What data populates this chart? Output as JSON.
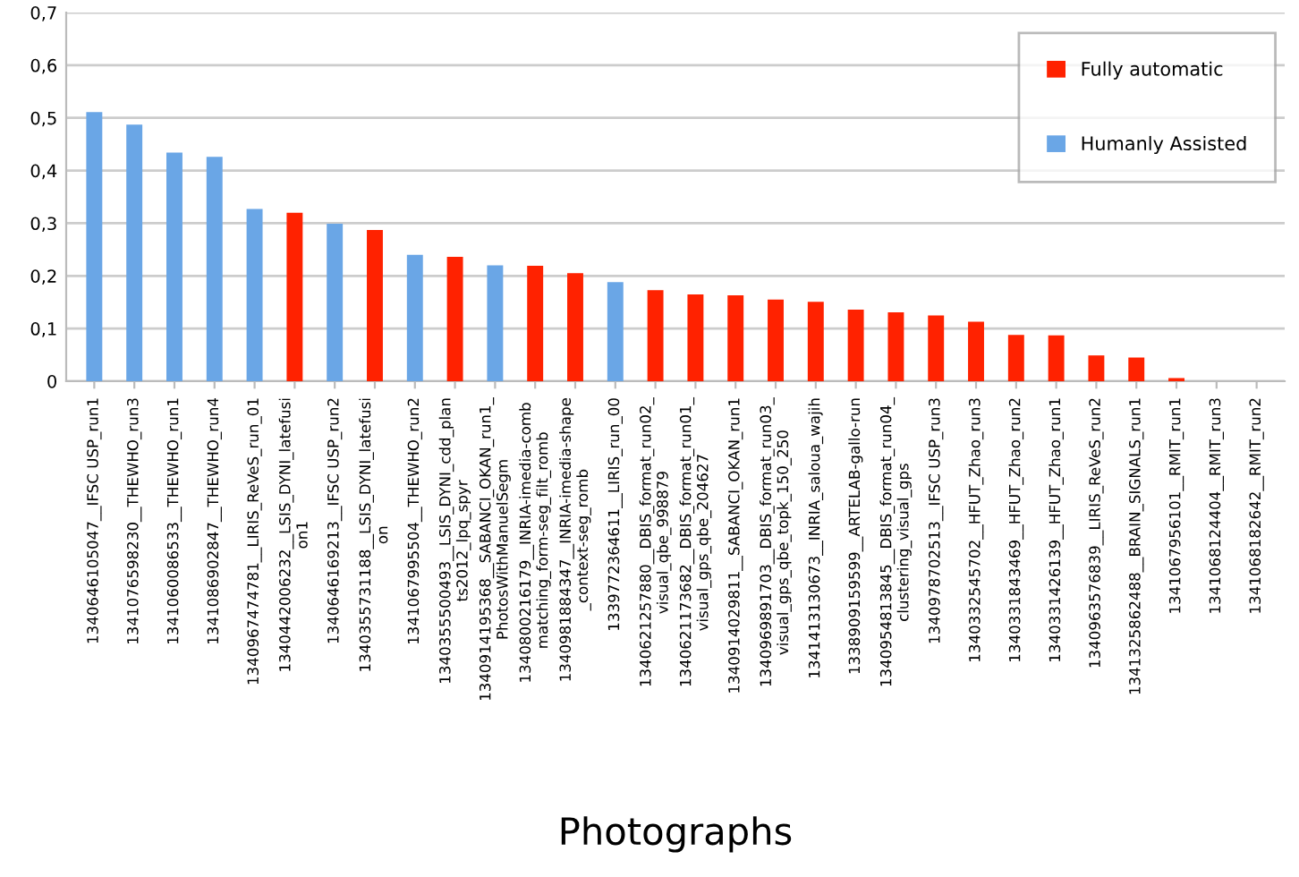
{
  "chart_data": {
    "type": "bar",
    "xlabel": "Photographs",
    "categories": [
      "1340646105047__IFSC USP_run1",
      "1341076598230__THEWHO_run3",
      "1341060086533__THEWHO_run1",
      "1341086902847__THEWHO_run4",
      "1340967474781__LIRIS_ReVeS_run_01",
      "1340442006232__LSIS_DYNI_latefusion1",
      "1340646169213__IFSC USP_run2",
      "1340355731188__LSIS_DYNI_latefusion",
      "1341067995504__THEWHO_run2",
      "1340355500493__LSIS_DYNI_cdd_plants2012_lpq_spyr",
      "1340914195368__SABANCI_OKAN_run1_PhotosWithManuelSegm",
      "1340800216179__INRIA-imedia-comb matching_form-seg_filt_romb",
      "1340981884347__INRIA-imedia-shape_context-seg_romb",
      "1339772364611__LIRIS_run_00",
      "1340621257880__DBIS_format_run02_visual_qbe_998879",
      "1340621173682__DBIS_format_run01_visual_gps_qbe_204627",
      "1340914029811__SABANCI_OKAN_run1",
      "1340969891703__DBIS_format_run03_visual_gps_qbe_topk_150_250",
      "1341413130673__INRIA_saloua_wajih",
      "1338909159599__ARTELAB-gallo-run",
      "1340954813845__DBIS_format_run04_clustering_visual_gps",
      "1340978702513__IFSC USP_run3",
      "1340332545702__HFUT_Zhao_run3",
      "1340331843469__HFUT_Zhao_run2",
      "1340331426139__HFUT_Zhao_run1",
      "1340963576839__LIRIS_ReVeS_run2",
      "1341325862488__BRAIN_SIGNALS_run1",
      "1341067956101__RMIT_run1",
      "1341068124404__RMIT_run3",
      "1341068182642__RMIT_run2"
    ],
    "series": [
      {
        "name": "Fully automatic",
        "color": "#ff2200",
        "values": [
          null,
          null,
          null,
          null,
          null,
          0.32,
          null,
          0.287,
          null,
          0.236,
          null,
          0.219,
          0.205,
          null,
          0.173,
          0.165,
          0.163,
          0.155,
          0.151,
          0.136,
          0.131,
          0.125,
          0.113,
          0.088,
          0.087,
          0.049,
          0.045,
          0.006,
          0,
          0
        ]
      },
      {
        "name": "Humanly Assisted",
        "color": "#6aa6e6",
        "values": [
          0.511,
          0.487,
          0.434,
          0.426,
          0.327,
          null,
          0.299,
          null,
          0.24,
          null,
          0.22,
          null,
          null,
          0.188,
          null,
          null,
          null,
          null,
          null,
          null,
          null,
          null,
          null,
          null,
          null,
          null,
          null,
          null,
          null,
          null
        ]
      }
    ],
    "ylim": [
      0,
      0.7
    ],
    "yticks": [
      {
        "value": 0,
        "label": "0"
      },
      {
        "value": 0.1,
        "label": "0,1"
      },
      {
        "value": 0.2,
        "label": "0,2"
      },
      {
        "value": 0.3,
        "label": "0,3"
      },
      {
        "value": 0.4,
        "label": "0,4"
      },
      {
        "value": 0.5,
        "label": "0,5"
      },
      {
        "value": 0.6,
        "label": "0,6"
      },
      {
        "value": 0.7,
        "label": "0,7"
      }
    ],
    "grid": "y",
    "legend": "top right"
  }
}
